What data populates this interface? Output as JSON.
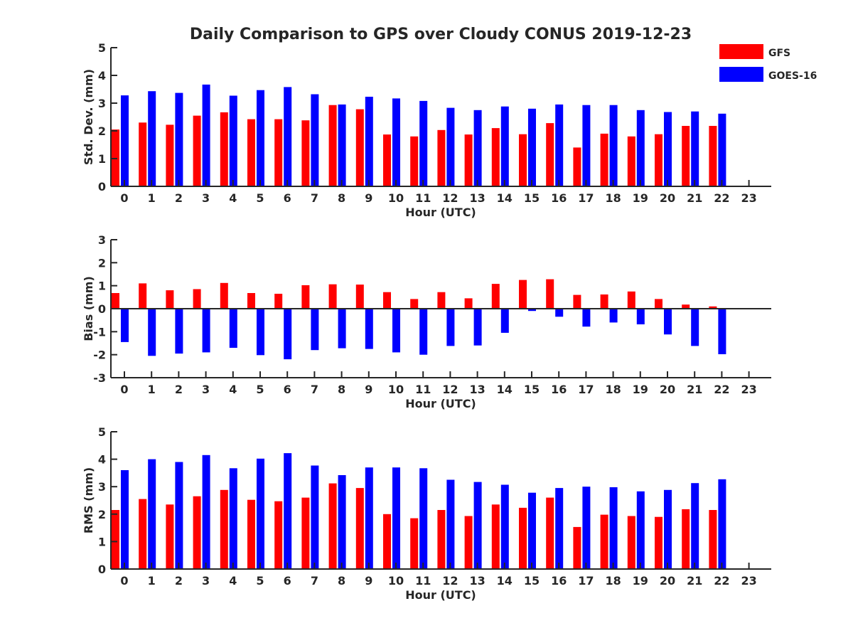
{
  "title": "Daily Comparison to GPS over Cloudy CONUS 2019-12-23",
  "legend": [
    {
      "name": "GFS",
      "color": "#ff0000"
    },
    {
      "name": "GOES-16",
      "color": "#0000ff"
    }
  ],
  "chart_data": [
    {
      "type": "bar",
      "id": "std",
      "xlabel": "Hour (UTC)",
      "ylabel": "Std. Dev. (mm)",
      "ylim": [
        0,
        5
      ],
      "yticks": [
        "0",
        "1",
        "2",
        "3",
        "4",
        "5"
      ],
      "categories": [
        "0",
        "1",
        "2",
        "3",
        "4",
        "5",
        "6",
        "7",
        "8",
        "9",
        "10",
        "11",
        "12",
        "13",
        "14",
        "15",
        "16",
        "17",
        "18",
        "19",
        "20",
        "21",
        "22",
        "23"
      ],
      "series": [
        {
          "name": "GFS",
          "color": "#ff0000",
          "values": [
            2.05,
            2.3,
            2.22,
            2.55,
            2.67,
            2.42,
            2.42,
            2.38,
            2.93,
            2.78,
            1.87,
            1.8,
            2.03,
            1.87,
            2.1,
            1.88,
            2.28,
            1.4,
            1.9,
            1.8,
            1.88,
            2.18,
            2.18,
            null
          ]
        },
        {
          "name": "GOES-16",
          "color": "#0000ff",
          "values": [
            3.28,
            3.43,
            3.37,
            3.67,
            3.27,
            3.47,
            3.58,
            3.32,
            2.95,
            3.23,
            3.17,
            3.08,
            2.83,
            2.75,
            2.88,
            2.8,
            2.95,
            2.93,
            2.93,
            2.75,
            2.68,
            2.7,
            2.62,
            null
          ]
        }
      ]
    },
    {
      "type": "bar",
      "id": "bias",
      "xlabel": "Hour (UTC)",
      "ylabel": "Bias (mm)",
      "ylim": [
        -3,
        3
      ],
      "yticks": [
        "-3",
        "-2",
        "-1",
        "0",
        "1",
        "2",
        "3"
      ],
      "categories": [
        "0",
        "1",
        "2",
        "3",
        "4",
        "5",
        "6",
        "7",
        "8",
        "9",
        "10",
        "11",
        "12",
        "13",
        "14",
        "15",
        "16",
        "17",
        "18",
        "19",
        "20",
        "21",
        "22",
        "23"
      ],
      "series": [
        {
          "name": "GFS",
          "color": "#ff0000",
          "values": [
            0.68,
            1.1,
            0.8,
            0.85,
            1.12,
            0.68,
            0.65,
            1.02,
            1.06,
            1.05,
            0.72,
            0.42,
            0.72,
            0.45,
            1.08,
            1.25,
            1.28,
            0.6,
            0.62,
            0.75,
            0.42,
            0.18,
            0.1,
            null
          ]
        },
        {
          "name": "GOES-16",
          "color": "#0000ff",
          "values": [
            -1.45,
            -2.05,
            -1.95,
            -1.9,
            -1.7,
            -2.02,
            -2.2,
            -1.8,
            -1.72,
            -1.75,
            -1.9,
            -2.0,
            -1.62,
            -1.6,
            -1.05,
            -0.1,
            -0.35,
            -0.78,
            -0.6,
            -0.68,
            -1.12,
            -1.62,
            -1.98,
            null
          ]
        }
      ]
    },
    {
      "type": "bar",
      "id": "rms",
      "xlabel": "Hour (UTC)",
      "ylabel": "RMS (mm)",
      "ylim": [
        0,
        5
      ],
      "yticks": [
        "0",
        "1",
        "2",
        "3",
        "4",
        "5"
      ],
      "categories": [
        "0",
        "1",
        "2",
        "3",
        "4",
        "5",
        "6",
        "7",
        "8",
        "9",
        "10",
        "11",
        "12",
        "13",
        "14",
        "15",
        "16",
        "17",
        "18",
        "19",
        "20",
        "21",
        "22",
        "23"
      ],
      "series": [
        {
          "name": "GFS",
          "color": "#ff0000",
          "values": [
            2.15,
            2.55,
            2.35,
            2.65,
            2.88,
            2.52,
            2.47,
            2.6,
            3.12,
            2.95,
            2.0,
            1.85,
            2.15,
            1.93,
            2.35,
            2.23,
            2.6,
            1.53,
            1.98,
            1.93,
            1.9,
            2.18,
            2.15,
            null
          ]
        },
        {
          "name": "GOES-16",
          "color": "#0000ff",
          "values": [
            3.6,
            4.0,
            3.9,
            4.15,
            3.67,
            4.02,
            4.22,
            3.77,
            3.42,
            3.7,
            3.7,
            3.67,
            3.25,
            3.17,
            3.07,
            2.78,
            2.95,
            3.0,
            2.98,
            2.83,
            2.88,
            3.13,
            3.27,
            null
          ]
        }
      ]
    }
  ]
}
